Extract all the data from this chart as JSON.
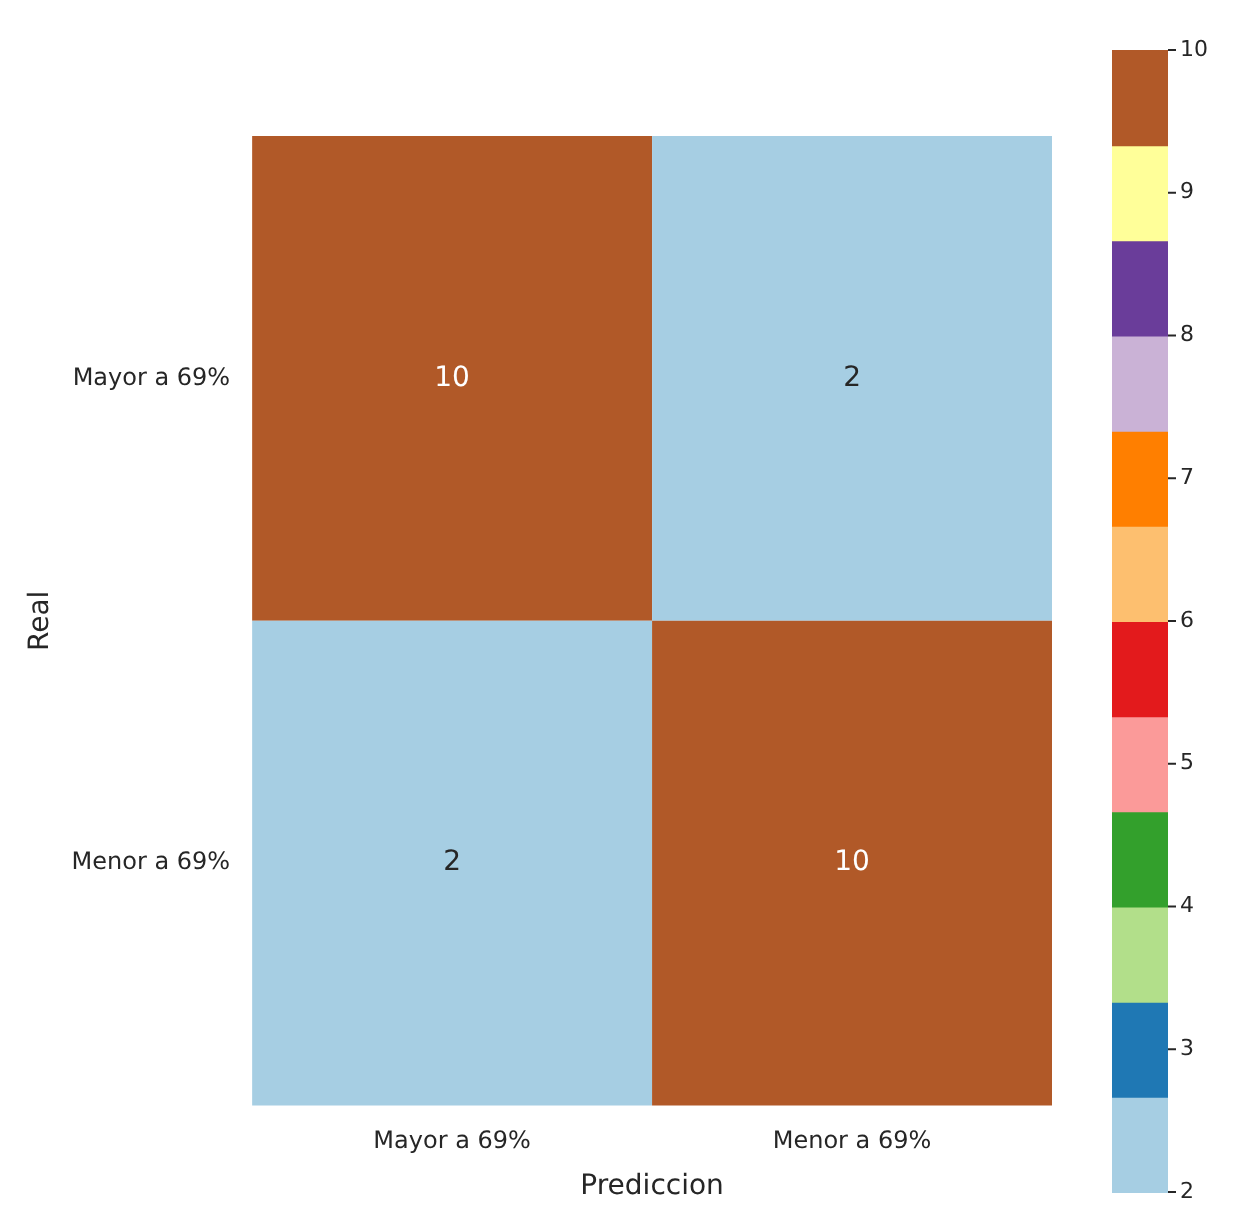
{
  "chart_data": {
    "type": "heatmap",
    "xlabel": "Prediccion",
    "ylabel": "Real",
    "categories": [
      "Mayor a 69%",
      "Menor a 69%"
    ],
    "y_categories": [
      "Mayor a 69%",
      "Menor a 69%"
    ],
    "cells": [
      [
        10,
        2
      ],
      [
        2,
        10
      ]
    ],
    "data_labels": true,
    "clim": [
      2,
      10
    ],
    "cticks": [
      2,
      3,
      4,
      5,
      6,
      7,
      8,
      9,
      10
    ]
  }
}
